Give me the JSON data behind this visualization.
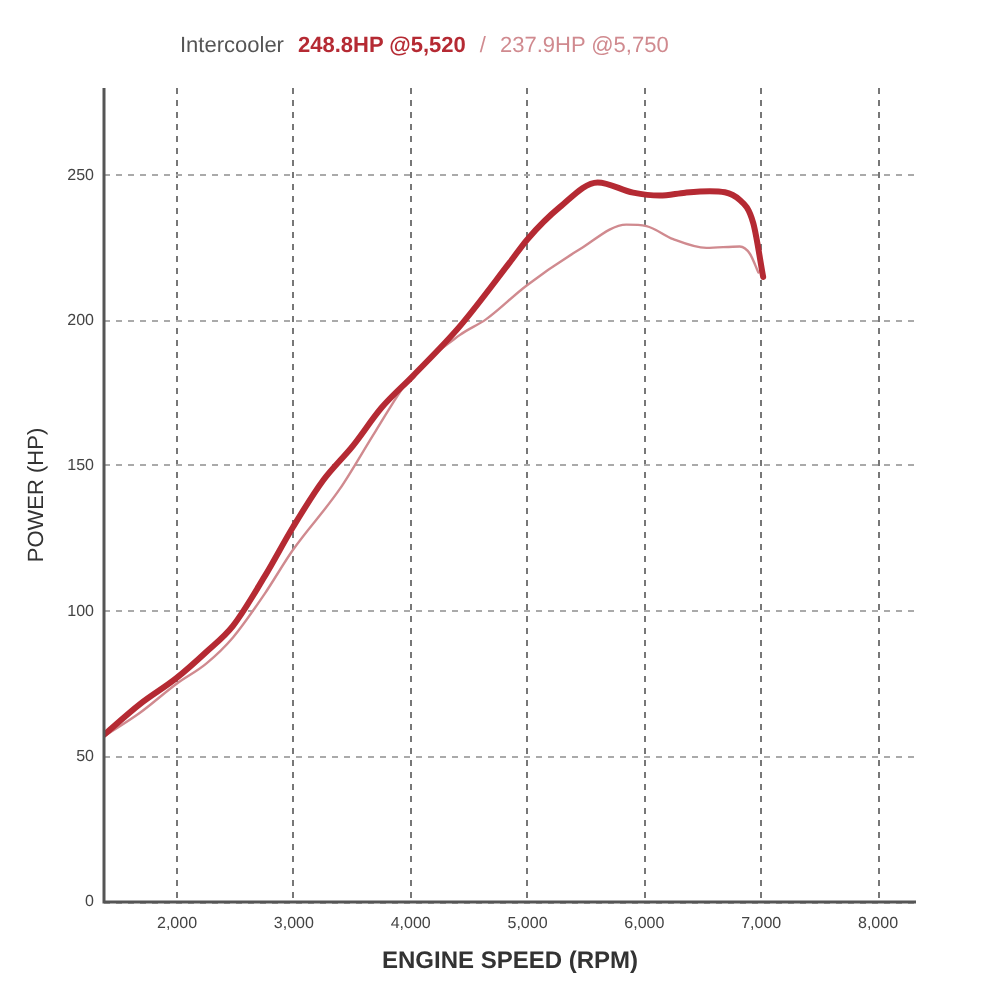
{
  "chart_data": {
    "type": "line",
    "title": "Intercooler",
    "annotations": [
      "248.8HP @5,520",
      "/",
      "237.9HP @5,750"
    ],
    "xlabel": "ENGINE SPEED (RPM)",
    "ylabel": "POWER (HP)",
    "series": [
      {
        "color": "#b52a33",
        "x": [
          1375,
          1680,
          1994,
          2250,
          2479,
          2750,
          2993,
          3250,
          3507,
          3750,
          4020,
          4420,
          4848,
          5000,
          5276,
          5600,
          5904,
          6132,
          6350,
          6560,
          6817,
          6932,
          7017
        ],
        "values": [
          57.5,
          68,
          77,
          86,
          95,
          112,
          129,
          145,
          157,
          170,
          181,
          198,
          220,
          228,
          239,
          247.5,
          244,
          243,
          244,
          244.5,
          241.5,
          233.5,
          215
        ]
      },
      {
        "color": "#d08a8f",
        "x": [
          1375,
          1680,
          1994,
          2250,
          2479,
          2750,
          2990,
          3392,
          3700,
          3991,
          4419,
          4647,
          4990,
          5447,
          5846,
          6018,
          6247,
          6531,
          6817,
          6903,
          6976
        ],
        "values": [
          57,
          65,
          75,
          82,
          91,
          106,
          121,
          142,
          162,
          180,
          195,
          200.5,
          212,
          224.5,
          233,
          232.5,
          228,
          225,
          225.5,
          223,
          216.5
        ]
      }
    ],
    "xlim": [
      1375,
      8325
    ],
    "xticks": [
      {
        "value": 2000,
        "label": "2,000"
      },
      {
        "value": 3000,
        "label": "3,000"
      },
      {
        "value": 4000,
        "label": "4,000"
      },
      {
        "value": 5000,
        "label": "5,000"
      },
      {
        "value": 6000,
        "label": "6,000"
      },
      {
        "value": 7000,
        "label": "7,000"
      },
      {
        "value": 8000,
        "label": "8,000"
      }
    ],
    "ylim": [
      0,
      280
    ],
    "yticks": [
      0,
      50,
      100,
      150,
      200,
      250
    ],
    "grid": true,
    "marker": "none",
    "line_style": "solid"
  }
}
